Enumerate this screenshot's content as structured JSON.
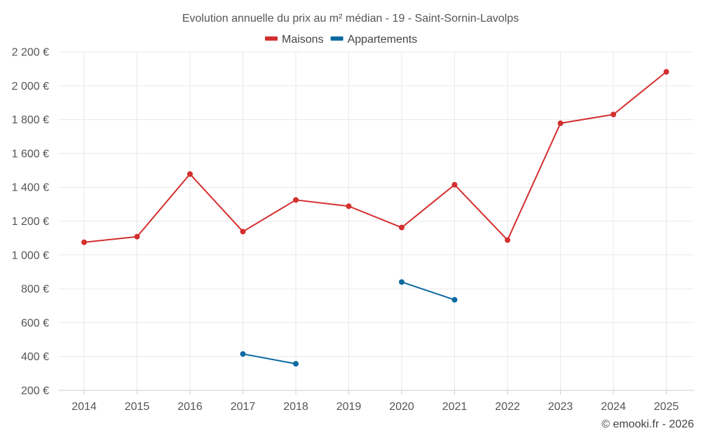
{
  "chart_data": {
    "type": "line",
    "title": "Evolution annuelle du prix au m² médian - 19 - Saint-Sornin-Lavolps",
    "categories": [
      "2014",
      "2015",
      "2016",
      "2017",
      "2018",
      "2019",
      "2020",
      "2021",
      "2022",
      "2023",
      "2024",
      "2025"
    ],
    "ylim": [
      200,
      2200
    ],
    "yticks": [
      200,
      400,
      600,
      800,
      1000,
      1200,
      1400,
      1600,
      1800,
      2000,
      2200
    ],
    "ytick_labels": [
      "200 €",
      "400 €",
      "600 €",
      "800 €",
      "1 000 €",
      "1 200 €",
      "1 400 €",
      "1 600 €",
      "1 800 €",
      "2 000 €",
      "2 200 €"
    ],
    "grid": true,
    "legend_position": "top-center",
    "series": [
      {
        "name": "Maisons",
        "color": "#d32f2f",
        "values": [
          1075,
          1108,
          1478,
          1138,
          1325,
          1288,
          1162,
          1415,
          1088,
          1778,
          1830,
          2082
        ]
      },
      {
        "name": "Appartements",
        "color": "#0d6aa1",
        "values": [
          null,
          null,
          null,
          415,
          357,
          null,
          840,
          735,
          null,
          null,
          null,
          null
        ]
      }
    ]
  },
  "credit": "© emooki.fr - 2026"
}
